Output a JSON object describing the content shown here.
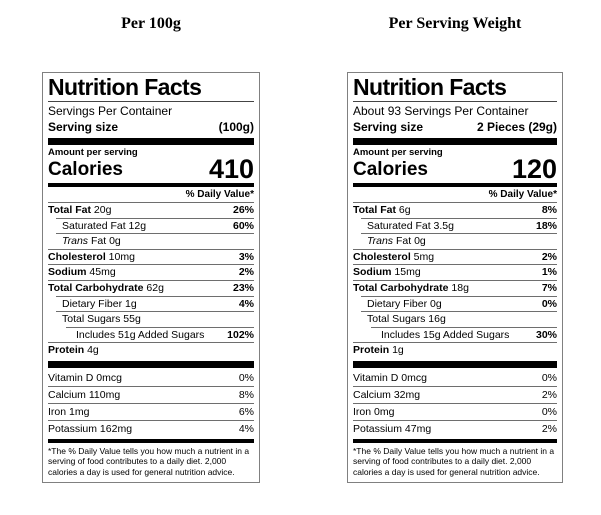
{
  "page": {
    "background": "#ffffff",
    "text_color": "#000000",
    "bar_color": "#000000",
    "border_color": "#808080"
  },
  "labels": [
    {
      "title": "Per 100g",
      "heading": "Nutrition Facts",
      "servings_per_container": "Servings Per Container",
      "serving_size_label": "Serving size",
      "serving_size_value": "(100g)",
      "amount_per_serving": "Amount per serving",
      "calories_label": "Calories",
      "calories_value": "410",
      "dv_header": "% Daily Value*",
      "rows": [
        {
          "italic": "",
          "bold": "Total Fat",
          "rest": " 20g",
          "dv": "26%"
        },
        {
          "italic": "",
          "bold": "",
          "rest": "Saturated Fat 12g",
          "dv": "60%"
        },
        {
          "italic": "Trans",
          "bold": "",
          "rest": " Fat 0g",
          "dv": ""
        },
        {
          "italic": "",
          "bold": "Cholesterol",
          "rest": " 10mg",
          "dv": "3%"
        },
        {
          "italic": "",
          "bold": "Sodium",
          "rest": " 45mg",
          "dv": "2%"
        },
        {
          "italic": "",
          "bold": "Total Carbohydrate",
          "rest": " 62g",
          "dv": "23%"
        },
        {
          "italic": "",
          "bold": "",
          "rest": "Dietary Fiber 1g",
          "dv": "4%"
        },
        {
          "italic": "",
          "bold": "",
          "rest": "Total Sugars 55g",
          "dv": ""
        },
        {
          "italic": "",
          "bold": "",
          "rest": "Includes 51g Added Sugars",
          "dv": "102%"
        },
        {
          "italic": "",
          "bold": "Protein",
          "rest": " 4g",
          "dv": ""
        }
      ],
      "vitamins": [
        {
          "name": "Vitamin D 0mcg",
          "dv": "0%"
        },
        {
          "name": "Calcium 110mg",
          "dv": "8%"
        },
        {
          "name": "Iron 1mg",
          "dv": "6%"
        },
        {
          "name": "Potassium 162mg",
          "dv": "4%"
        }
      ],
      "footnote": "*The % Daily Value tells you how much a nutrient in a serving of food contributes to a daily diet. 2,000 calories a day is used for general nutrition advice."
    },
    {
      "title": "Per Serving Weight",
      "heading": "Nutrition Facts",
      "servings_per_container": "About 93 Servings Per Container",
      "serving_size_label": "Serving size",
      "serving_size_value": "2 Pieces (29g)",
      "amount_per_serving": "Amount per serving",
      "calories_label": "Calories",
      "calories_value": "120",
      "dv_header": "% Daily Value*",
      "rows": [
        {
          "italic": "",
          "bold": "Total Fat",
          "rest": " 6g",
          "dv": "8%"
        },
        {
          "italic": "",
          "bold": "",
          "rest": "Saturated Fat 3.5g",
          "dv": "18%"
        },
        {
          "italic": "Trans",
          "bold": "",
          "rest": " Fat 0g",
          "dv": ""
        },
        {
          "italic": "",
          "bold": "Cholesterol",
          "rest": " 5mg",
          "dv": "2%"
        },
        {
          "italic": "",
          "bold": "Sodium",
          "rest": " 15mg",
          "dv": "1%"
        },
        {
          "italic": "",
          "bold": "Total Carbohydrate",
          "rest": " 18g",
          "dv": "7%"
        },
        {
          "italic": "",
          "bold": "",
          "rest": "Dietary Fiber 0g",
          "dv": "0%"
        },
        {
          "italic": "",
          "bold": "",
          "rest": "Total Sugars 16g",
          "dv": ""
        },
        {
          "italic": "",
          "bold": "",
          "rest": "Includes 15g Added Sugars",
          "dv": "30%"
        },
        {
          "italic": "",
          "bold": "Protein",
          "rest": " 1g",
          "dv": ""
        }
      ],
      "vitamins": [
        {
          "name": "Vitamin D 0mcg",
          "dv": "0%"
        },
        {
          "name": "Calcium 32mg",
          "dv": "2%"
        },
        {
          "name": "Iron 0mg",
          "dv": "0%"
        },
        {
          "name": "Potassium 47mg",
          "dv": "2%"
        }
      ],
      "footnote": "*The % Daily Value tells you how much a nutrient in a serving of food contributes to a daily diet. 2,000 calories a day is used for general nutrition advice."
    }
  ]
}
